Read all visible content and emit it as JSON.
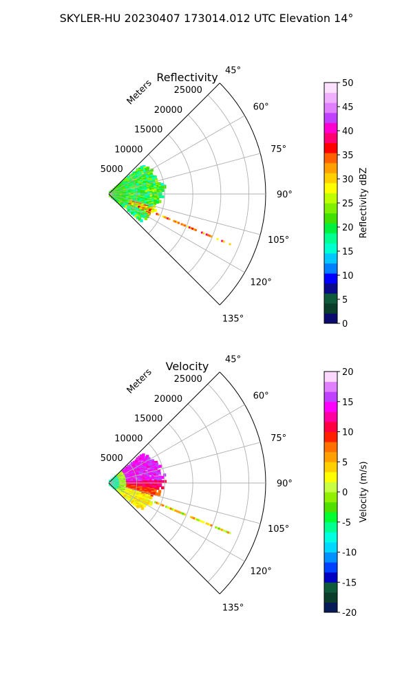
{
  "figure": {
    "title": "SKYLER-HU  20230407  173014.012 UTC Elevation 14°"
  },
  "chart_data": [
    {
      "type": "heatmap",
      "title": "Reflectivity",
      "subtype": "polar-sector (PPI)",
      "range_label": "Meters",
      "range_ticks": [
        5000,
        10000,
        15000,
        20000,
        25000
      ],
      "range_lim": [
        0,
        28000
      ],
      "angle_ticks": [
        "45°",
        "60°",
        "75°",
        "90°",
        "105°",
        "120°",
        "135°"
      ],
      "angle_lim": [
        45,
        135
      ],
      "grid": true,
      "colorbar": {
        "label": "Reflectivity dBZ",
        "ticks": [
          0,
          5,
          10,
          15,
          20,
          25,
          30,
          35,
          40,
          45,
          50
        ],
        "lim": [
          0,
          50
        ],
        "placement": "right"
      },
      "field_description": "echoes mostly 10–25 dBZ within ~9000 m, peaks near 30–40 dBZ along 110–115° radial"
    },
    {
      "type": "heatmap",
      "title": "Velocity",
      "subtype": "polar-sector (PPI)",
      "range_label": "Meters",
      "range_ticks": [
        5000,
        10000,
        15000,
        20000,
        25000
      ],
      "range_lim": [
        0,
        28000
      ],
      "angle_ticks": [
        "45°",
        "60°",
        "75°",
        "90°",
        "105°",
        "120°",
        "135°"
      ],
      "angle_lim": [
        45,
        135
      ],
      "grid": true,
      "colorbar": {
        "label": "Velocity (m/s)",
        "ticks": [
          -20,
          -15,
          -10,
          -5,
          0,
          5,
          10,
          15,
          20
        ],
        "lim": [
          -20,
          20
        ],
        "placement": "right"
      },
      "field_description": "near-range -10 m/s, 10–15 m/s at 55–90°, 5–10 m/s at 90–110°, 0–5 m/s at 110–130°"
    }
  ]
}
